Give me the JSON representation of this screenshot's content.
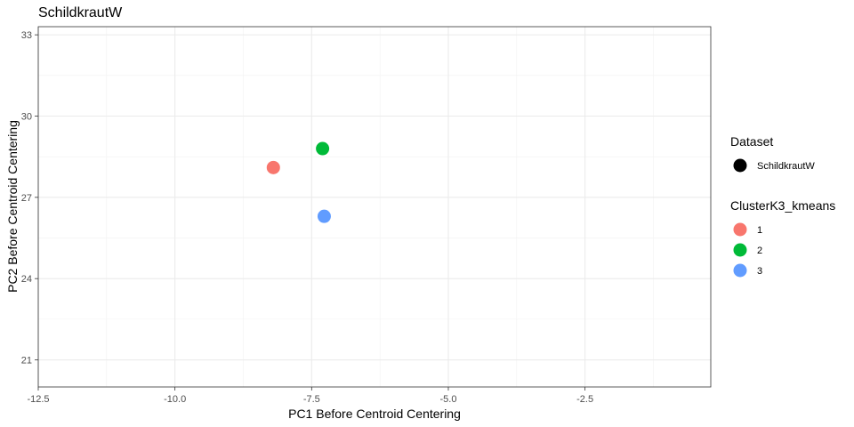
{
  "chart_data": {
    "type": "scatter",
    "title": "SchildkrautW",
    "xlabel": "PC1 Before Centroid Centering",
    "ylabel": "PC2 Before Centroid Centering",
    "xlim": [
      -12.5,
      -0.2
    ],
    "ylim": [
      20.0,
      33.3
    ],
    "x_ticks": [
      -12.5,
      -10.0,
      -7.5,
      -5.0,
      -2.5
    ],
    "x_tick_labels": [
      "-12.5",
      "-10.0",
      "-7.5",
      "-5.0",
      "-2.5"
    ],
    "y_ticks": [
      21,
      24,
      27,
      30,
      33
    ],
    "y_tick_labels": [
      "21",
      "24",
      "27",
      "30",
      "33"
    ],
    "grid": true,
    "legend_position": "right",
    "series": [
      {
        "name": "1",
        "color": "#F8766D",
        "points": [
          {
            "x": -8.2,
            "y": 28.1
          }
        ]
      },
      {
        "name": "2",
        "color": "#00BA38",
        "points": [
          {
            "x": -7.3,
            "y": 28.8
          }
        ]
      },
      {
        "name": "3",
        "color": "#619CFF",
        "points": [
          {
            "x": -7.27,
            "y": 26.3
          }
        ]
      }
    ],
    "legends": [
      {
        "title": "Dataset",
        "items": [
          {
            "label": "SchildkrautW",
            "color": "#000000"
          }
        ]
      },
      {
        "title": "ClusterK3_kmeans",
        "items": [
          {
            "label": "1",
            "color": "#F8766D"
          },
          {
            "label": "2",
            "color": "#00BA38"
          },
          {
            "label": "3",
            "color": "#619CFF"
          }
        ]
      }
    ]
  }
}
